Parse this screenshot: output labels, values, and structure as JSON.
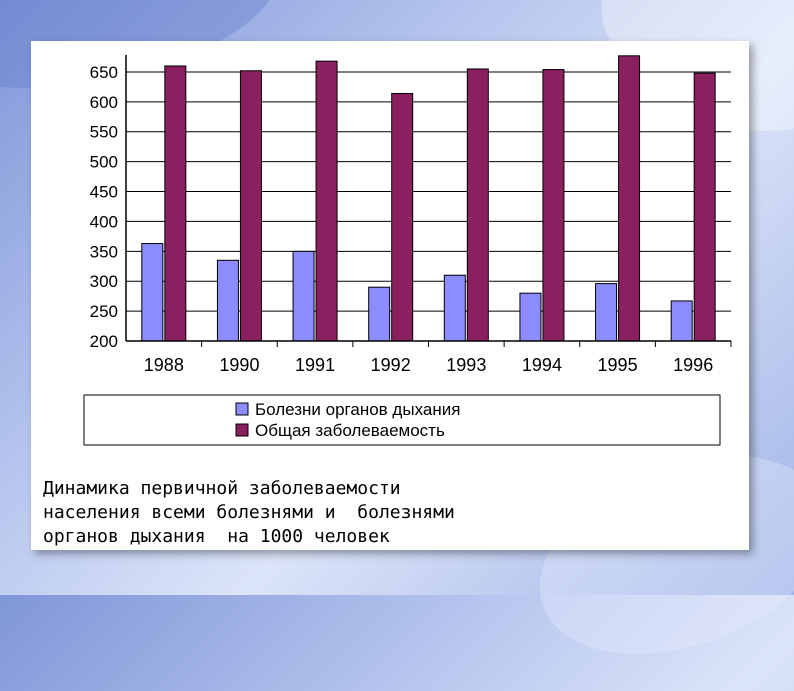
{
  "chart_data": {
    "type": "bar",
    "categories": [
      "1988",
      "1990",
      "1991",
      "1992",
      "1993",
      "1994",
      "1995",
      "1996"
    ],
    "series": [
      {
        "name": "Болезни органов дыхания",
        "color": "#8c8cff",
        "values": [
          363,
          335,
          350,
          290,
          310,
          280,
          296,
          267
        ]
      },
      {
        "name": "Общая заболеваемость",
        "color": "#8b2060",
        "values": [
          660,
          652,
          668,
          614,
          655,
          654,
          677,
          648
        ]
      }
    ],
    "yticks": [
      "650",
      "600",
      "550",
      "500",
      "450",
      "400",
      "350",
      "300",
      "250",
      "200"
    ],
    "ylim": [
      200,
      675
    ],
    "grid": true,
    "legend_position": "bottom"
  },
  "caption": {
    "line1": "Динамика первичной заболеваемости",
    "line2": "населения всеми болезнями и  болезнями",
    "line3": "органов дыхания  на 1000 человек"
  }
}
